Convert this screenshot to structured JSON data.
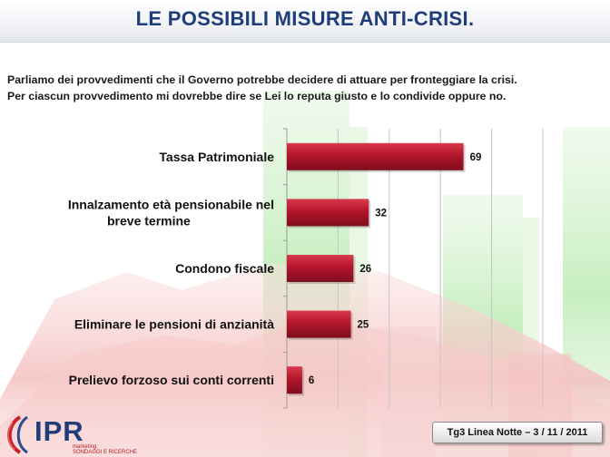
{
  "page": {
    "title": "LE POSSIBILI MISURE ANTI-CRISI.",
    "intro_line1": "Parliamo dei provvedimenti che il Governo potrebbe decidere di attuare per fronteggiare la crisi.",
    "intro_line2": "Per ciascun provvedimento mi dovrebbe dire se Lei lo reputa giusto e lo condivide oppure no.",
    "source": "Tg3 Linea Notte – 3 / 11 / 2011",
    "logo_text": "IPR",
    "logo_sub1": "marketing",
    "logo_sub2": "SONDAGGI E RICERCHE"
  },
  "colors": {
    "bar": "#b5152b",
    "bar_dark": "#7e0e1e",
    "title": "#1f3d7a",
    "bg_green": "#c6f0c0",
    "bg_red": "#f6c6c6"
  },
  "chart_data": {
    "type": "bar",
    "orientation": "horizontal",
    "categories": [
      [
        "Tassa Patrimoniale"
      ],
      [
        "Innalzamento età pensionabile nel",
        "breve termine"
      ],
      [
        "Condono fiscale"
      ],
      [
        "Eliminare le pensioni di anzianità"
      ],
      [
        "Prelievo forzoso sui conti correnti"
      ]
    ],
    "values": [
      69,
      32,
      26,
      25,
      6
    ],
    "xlim": [
      0,
      100
    ],
    "grid": true,
    "data_labels": true,
    "legend": "none"
  }
}
